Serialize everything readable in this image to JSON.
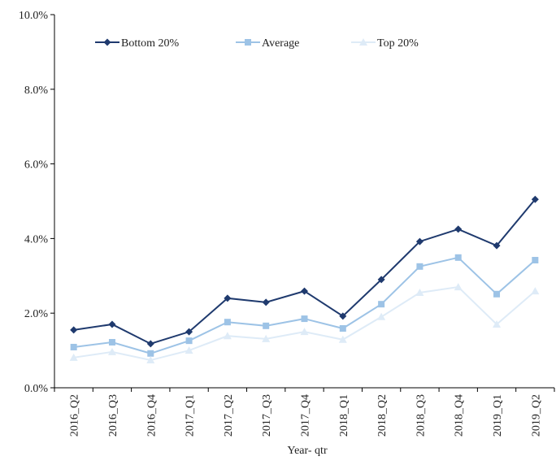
{
  "chart_data": {
    "type": "line",
    "x_label": "Year- qtr",
    "categories": [
      "2016_Q2",
      "2016_Q3",
      "2016_Q4",
      "2017_Q1",
      "2017_Q2",
      "2017_Q3",
      "2017_Q4",
      "2018_Q1",
      "2018_Q2",
      "2018_Q3",
      "2018_Q4",
      "2019_Q1",
      "2019_Q2"
    ],
    "series": [
      {
        "name": "Bottom 20%",
        "color": "#1f3a6e",
        "marker": "diamond",
        "values": [
          1.55,
          1.7,
          1.18,
          1.5,
          2.4,
          2.29,
          2.59,
          1.92,
          2.9,
          3.92,
          4.25,
          3.81,
          5.05
        ]
      },
      {
        "name": "Average",
        "color": "#9dc3e6",
        "marker": "square",
        "values": [
          1.09,
          1.22,
          0.92,
          1.26,
          1.76,
          1.66,
          1.85,
          1.59,
          2.24,
          3.25,
          3.49,
          2.51,
          3.42
        ]
      },
      {
        "name": "Top 20%",
        "color": "#deebf7",
        "marker": "triangle",
        "values": [
          0.81,
          0.96,
          0.74,
          1.0,
          1.39,
          1.31,
          1.5,
          1.29,
          1.9,
          2.55,
          2.7,
          1.7,
          2.59
        ]
      }
    ],
    "ylim": [
      0,
      10
    ],
    "yticks": [
      {
        "value": 0,
        "label": "0.0%"
      },
      {
        "value": 2,
        "label": "2.0%"
      },
      {
        "value": 4,
        "label": "4.0%"
      },
      {
        "value": 6,
        "label": "6.0%"
      },
      {
        "value": 8,
        "label": "8.0%"
      },
      {
        "value": 10,
        "label": "10.0%"
      }
    ],
    "grid": false,
    "legend": "top-left"
  }
}
